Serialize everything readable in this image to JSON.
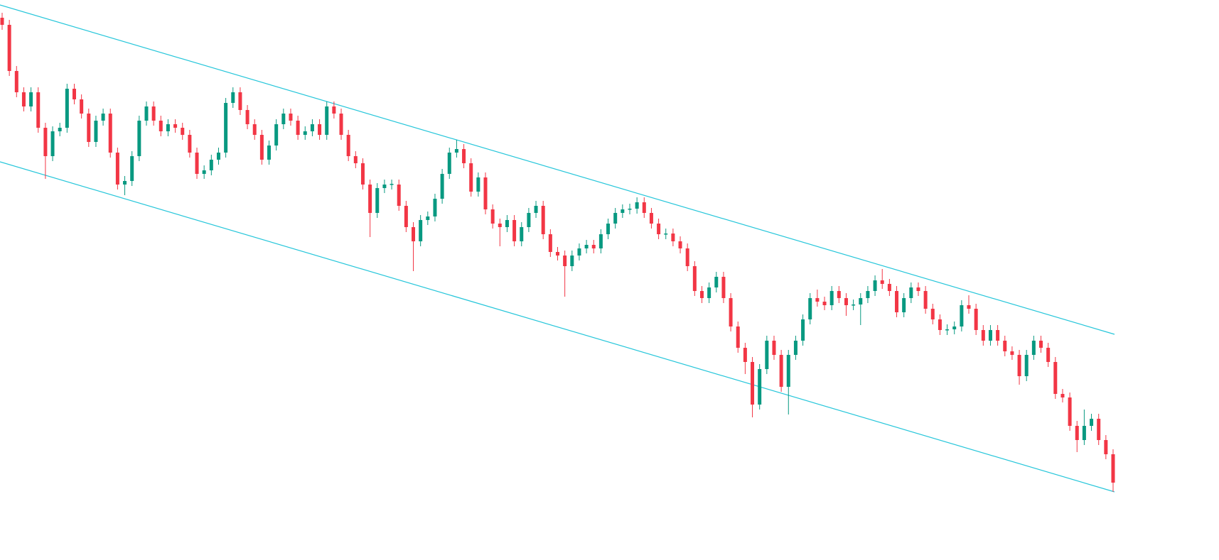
{
  "chart_data": {
    "type": "candlestick",
    "title": "",
    "xlabel": "",
    "ylabel": "",
    "ylim": [
      21.1,
      100
    ],
    "grid": false,
    "colors": {
      "up": "#089981",
      "down": "#f23645",
      "channel": "#26c6da",
      "background": "#ffffff"
    },
    "channel": {
      "upper": {
        "start": 99.3,
        "end": 52.9
      },
      "lower": {
        "start": 77.2,
        "end": 30.7
      }
    },
    "candles": [
      [
        97.5,
        98.2,
        95.8,
        96.5
      ],
      [
        96.5,
        97.2,
        89.3,
        90
      ],
      [
        90,
        90.7,
        86.3,
        87
      ],
      [
        87,
        87.7,
        84.3,
        85
      ],
      [
        85,
        87.7,
        84.3,
        87
      ],
      [
        87,
        87.7,
        81.3,
        82
      ],
      [
        82,
        82.7,
        74.8,
        78
      ],
      [
        78,
        82.2,
        77.3,
        81.5
      ],
      [
        81.5,
        82.7,
        80.8,
        82
      ],
      [
        82,
        88.2,
        81.3,
        87.5
      ],
      [
        87.5,
        88.2,
        85.3,
        86
      ],
      [
        86,
        86.7,
        83.3,
        84
      ],
      [
        84,
        84.7,
        79.3,
        80
      ],
      [
        80,
        83.7,
        79.3,
        83
      ],
      [
        83,
        84.7,
        82.3,
        84
      ],
      [
        84,
        84.7,
        77.8,
        78.5
      ],
      [
        78.5,
        79.2,
        73.3,
        74
      ],
      [
        74,
        75.2,
        72.5,
        74.5
      ],
      [
        74.5,
        78.7,
        73.8,
        78
      ],
      [
        78,
        83.7,
        77.3,
        83
      ],
      [
        83,
        85.7,
        82.3,
        85
      ],
      [
        85,
        85.7,
        82.3,
        83
      ],
      [
        83,
        83.7,
        80.8,
        81.5
      ],
      [
        81.5,
        83.2,
        80.8,
        82.5
      ],
      [
        82.5,
        83.2,
        81.3,
        82
      ],
      [
        82,
        82.7,
        80.3,
        81
      ],
      [
        81,
        81.7,
        77.8,
        78.5
      ],
      [
        78.5,
        79.2,
        74.8,
        75.5
      ],
      [
        75.5,
        76.7,
        74.8,
        76
      ],
      [
        76,
        78.2,
        75.3,
        77.5
      ],
      [
        77.5,
        79.2,
        76.8,
        78.5
      ],
      [
        78.5,
        86.2,
        77.8,
        85.5
      ],
      [
        85.5,
        87.7,
        84.8,
        87
      ],
      [
        87,
        87.7,
        83.8,
        84.5
      ],
      [
        84.5,
        85.2,
        81.8,
        82.5
      ],
      [
        82.5,
        83.2,
        80.3,
        81
      ],
      [
        81,
        81.7,
        76.8,
        77.5
      ],
      [
        77.5,
        80.2,
        76.8,
        79.5
      ],
      [
        79.5,
        83.2,
        78.8,
        82.5
      ],
      [
        82.5,
        84.7,
        81.8,
        84
      ],
      [
        84,
        84.7,
        82.3,
        83
      ],
      [
        83,
        83.7,
        80.3,
        81
      ],
      [
        81,
        82.2,
        80.3,
        81.5
      ],
      [
        81.5,
        83.2,
        80.8,
        82.5
      ],
      [
        82.5,
        83.2,
        80.3,
        81
      ],
      [
        81,
        85.7,
        80.3,
        85
      ],
      [
        85,
        85.7,
        83.3,
        84
      ],
      [
        84,
        84.7,
        80.3,
        81
      ],
      [
        81,
        81.7,
        77.3,
        78
      ],
      [
        78,
        78.7,
        76.3,
        77
      ],
      [
        77,
        77.7,
        73.3,
        74
      ],
      [
        74,
        74.7,
        66.6,
        70
      ],
      [
        70,
        74.2,
        69.3,
        73.5
      ],
      [
        73.5,
        74.7,
        72.8,
        74
      ],
      [
        74,
        74.7,
        73.3,
        74.1
      ],
      [
        74,
        74.7,
        70.3,
        71
      ],
      [
        71,
        71.7,
        67.3,
        68
      ],
      [
        68,
        68.7,
        61.8,
        66
      ],
      [
        66,
        69.7,
        65.3,
        69
      ],
      [
        69,
        70.2,
        68.3,
        69.5
      ],
      [
        69.5,
        72.7,
        68.8,
        72
      ],
      [
        72,
        76.2,
        71.3,
        75.5
      ],
      [
        75.5,
        79.2,
        74.8,
        78.5
      ],
      [
        78.5,
        80.3,
        77.8,
        79
      ],
      [
        79,
        79.7,
        76.3,
        77
      ],
      [
        77,
        77.7,
        72.3,
        73
      ],
      [
        73,
        75.7,
        72.3,
        75
      ],
      [
        75,
        75.7,
        69.8,
        70.5
      ],
      [
        70.5,
        71.2,
        67.8,
        68.5
      ],
      [
        68.5,
        69.2,
        65.3,
        68
      ],
      [
        68,
        69.7,
        67.3,
        69
      ],
      [
        69,
        69.7,
        65.3,
        66
      ],
      [
        66,
        68.7,
        65.3,
        68
      ],
      [
        68,
        70.7,
        67.3,
        70
      ],
      [
        70,
        71.7,
        69.3,
        71
      ],
      [
        71,
        71.7,
        66.3,
        67
      ],
      [
        67,
        67.7,
        63.8,
        64.5
      ],
      [
        64.5,
        65.2,
        63.3,
        64
      ],
      [
        64,
        64.7,
        58.2,
        62.5
      ],
      [
        62.5,
        64.7,
        61.8,
        64
      ],
      [
        64,
        65.7,
        63.3,
        65
      ],
      [
        65,
        66.2,
        64.3,
        65.5
      ],
      [
        65.5,
        66.2,
        64.3,
        65
      ],
      [
        65,
        67.7,
        64.3,
        67
      ],
      [
        67,
        69.2,
        66.3,
        68.5
      ],
      [
        68.5,
        70.7,
        67.8,
        70
      ],
      [
        70,
        71.2,
        69.3,
        70.5
      ],
      [
        70.5,
        71.3,
        69.8,
        70.6
      ],
      [
        70.6,
        72.2,
        69.9,
        71.5
      ],
      [
        71.5,
        72.2,
        69.3,
        70
      ],
      [
        70,
        70.7,
        67.8,
        68.5
      ],
      [
        68.5,
        69.2,
        66.3,
        67
      ],
      [
        67,
        67.8,
        66.3,
        67.1
      ],
      [
        67.1,
        67.8,
        65.3,
        66
      ],
      [
        66,
        66.7,
        64.3,
        65
      ],
      [
        65,
        65.7,
        61.8,
        62.5
      ],
      [
        62.5,
        63.2,
        58.3,
        59
      ],
      [
        59,
        59.7,
        57.3,
        58
      ],
      [
        58,
        60.2,
        57.3,
        59.5
      ],
      [
        59.5,
        61.7,
        58.8,
        61
      ],
      [
        61,
        61.7,
        57.3,
        58
      ],
      [
        58,
        58.7,
        53.3,
        54
      ],
      [
        54,
        54.7,
        50.3,
        51
      ],
      [
        51,
        51.7,
        47.3,
        49
      ],
      [
        49,
        49.7,
        41.2,
        43
      ],
      [
        43,
        48.7,
        42.3,
        48
      ],
      [
        48,
        52.7,
        47.3,
        52
      ],
      [
        52,
        52.7,
        49.3,
        50
      ],
      [
        50,
        50.7,
        44.8,
        45.5
      ],
      [
        45.5,
        50.7,
        41.6,
        50
      ],
      [
        50,
        52.7,
        49.3,
        52
      ],
      [
        52,
        55.7,
        51.3,
        55
      ],
      [
        55,
        58.7,
        54.3,
        58
      ],
      [
        58,
        59.2,
        56.8,
        57.5
      ],
      [
        57.5,
        58.2,
        56.3,
        57
      ],
      [
        57,
        59.7,
        56.3,
        59
      ],
      [
        59,
        59.7,
        57.3,
        58
      ],
      [
        58,
        58.7,
        55.5,
        57
      ],
      [
        57,
        57.8,
        56.3,
        57.1
      ],
      [
        57.1,
        58.7,
        54.2,
        58
      ],
      [
        58,
        59.7,
        57.3,
        59
      ],
      [
        59,
        61.2,
        58.3,
        60.5
      ],
      [
        60.5,
        62.1,
        59.3,
        60
      ],
      [
        60,
        60.7,
        58.3,
        59
      ],
      [
        59,
        59.7,
        55.3,
        56
      ],
      [
        56,
        58.7,
        55.3,
        58
      ],
      [
        58,
        60.2,
        57.3,
        59.5
      ],
      [
        59.5,
        60.2,
        58.3,
        59
      ],
      [
        59,
        59.7,
        55.8,
        56.5
      ],
      [
        56.5,
        57.2,
        54.3,
        55
      ],
      [
        55,
        55.7,
        52.8,
        53.5
      ],
      [
        53.5,
        54.3,
        52.8,
        53.6
      ],
      [
        53.6,
        54.7,
        52.9,
        54
      ],
      [
        54,
        57.7,
        53.3,
        57
      ],
      [
        57,
        58.4,
        55.8,
        56.5
      ],
      [
        56.5,
        57.2,
        52.8,
        53.5
      ],
      [
        53.5,
        54.2,
        51.3,
        52
      ],
      [
        52,
        54.2,
        51.3,
        53.5
      ],
      [
        53.5,
        54.2,
        51.3,
        52
      ],
      [
        52,
        52.7,
        49.8,
        50.5
      ],
      [
        50.5,
        51.2,
        49.3,
        50
      ],
      [
        50,
        50.7,
        45.8,
        47
      ],
      [
        47,
        50.7,
        46.3,
        50
      ],
      [
        50,
        52.7,
        49.3,
        52
      ],
      [
        52,
        52.7,
        50.3,
        51
      ],
      [
        51,
        51.7,
        48.3,
        49
      ],
      [
        49,
        49.7,
        43.8,
        44.5
      ],
      [
        44.5,
        45.2,
        43.3,
        44
      ],
      [
        44,
        44.7,
        39.3,
        40
      ],
      [
        40,
        40.7,
        36.3,
        38
      ],
      [
        38,
        42.3,
        37.3,
        40
      ],
      [
        40,
        41.7,
        39.3,
        41
      ],
      [
        41,
        41.7,
        37.3,
        38
      ],
      [
        38,
        38.7,
        35.3,
        36
      ],
      [
        36,
        36.7,
        30.7,
        32
      ]
    ]
  }
}
